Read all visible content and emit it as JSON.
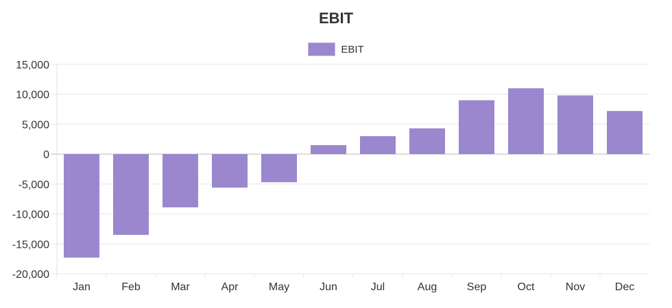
{
  "chart_data": {
    "type": "bar",
    "title": "EBIT",
    "categories": [
      "Jan",
      "Feb",
      "Mar",
      "Apr",
      "May",
      "Jun",
      "Jul",
      "Aug",
      "Sep",
      "Oct",
      "Nov",
      "Dec"
    ],
    "series": [
      {
        "name": "EBIT",
        "values": [
          -17300,
          -13500,
          -8900,
          -5600,
          -4700,
          1500,
          3000,
          4300,
          9000,
          11000,
          9800,
          7200
        ],
        "color": "#9a87cd"
      }
    ],
    "yticks": [
      15000,
      10000,
      5000,
      0,
      -5000,
      -10000,
      -15000,
      -20000
    ],
    "ytick_labels": [
      "15,000",
      "10,000",
      "5,000",
      "0",
      "-5,000",
      "-10,000",
      "-15,000",
      "-20,000"
    ],
    "ylim": [
      -20000,
      15000
    ],
    "xlabel": "",
    "ylabel": "",
    "legend": "top-center",
    "grid": true
  }
}
